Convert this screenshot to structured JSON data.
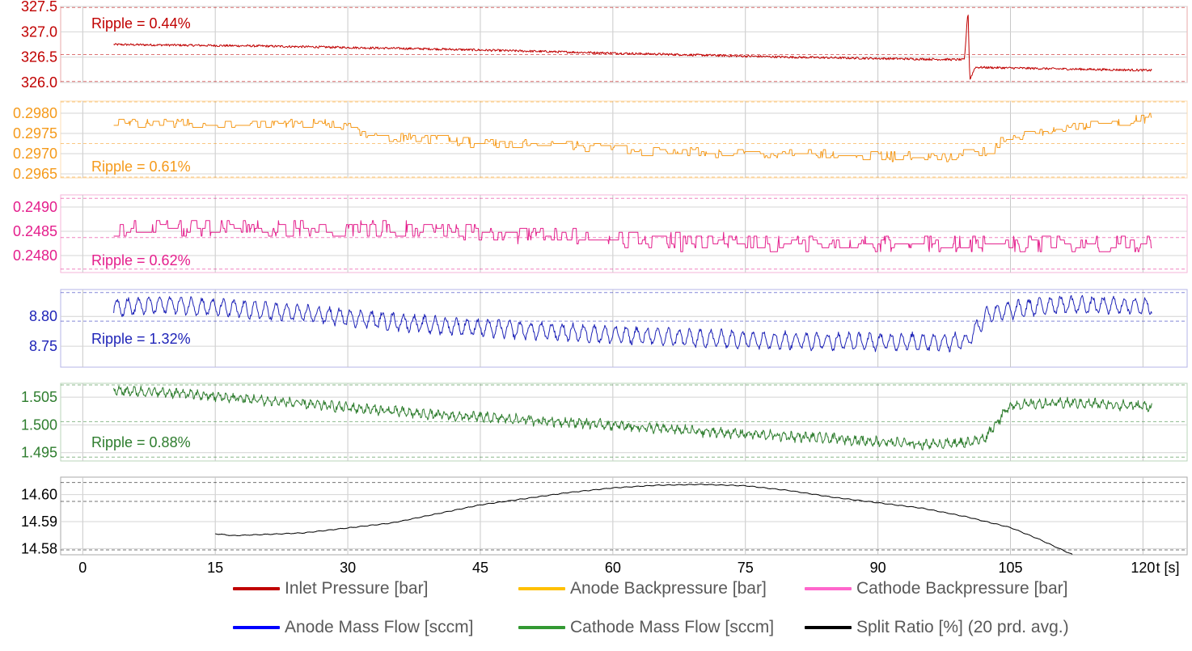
{
  "chart_data": {
    "type": "line",
    "x_axis": {
      "ticks": [
        0,
        15,
        30,
        45,
        60,
        75,
        90,
        105,
        120
      ],
      "tick_labels": [
        "0",
        "15",
        "30",
        "45",
        "60",
        "75",
        "90",
        "105",
        "120"
      ],
      "label": "t [s]",
      "range": [
        -2.5,
        125
      ],
      "grid": true
    },
    "data_range_x": [
      3.5,
      121
    ],
    "panels": [
      {
        "id": "inlet",
        "series_name": "Inlet Pressure [bar]",
        "color": "#c00000",
        "ripple": "Ripple = 0.44%",
        "ylim": [
          326.0,
          327.5
        ],
        "yticks": [
          326.0,
          326.5,
          327.0,
          327.5
        ],
        "ytick_labels": [
          "326.0",
          "326.5",
          "327.0",
          "327.5"
        ],
        "ref_lines": [
          326.02,
          326.55,
          327.48
        ],
        "x": [
          3.5,
          20,
          40,
          60,
          80,
          99.8,
          100.2,
          100.4,
          101,
          110,
          121
        ],
        "y": [
          326.75,
          326.72,
          326.66,
          326.58,
          326.5,
          326.45,
          327.45,
          326.05,
          326.3,
          326.27,
          326.24
        ],
        "noise": 0.022
      },
      {
        "id": "anode_bp",
        "series_name": "Anode Backpressure [bar]",
        "color": "#f59a1b",
        "ripple": "Ripple = 0.61%",
        "ylim": [
          0.2964,
          0.2983
        ],
        "yticks": [
          0.2965,
          0.297,
          0.2975,
          0.298
        ],
        "ytick_labels": [
          "0.2965",
          "0.2970",
          "0.2975",
          "0.2980"
        ],
        "ref_lines": [
          0.29642,
          0.29725,
          0.29828
        ],
        "x": [
          3.5,
          28,
          33,
          40,
          45,
          55,
          63,
          75,
          90,
          98,
          102,
          105,
          110,
          118,
          121
        ],
        "y": [
          0.29775,
          0.29775,
          0.29745,
          0.29735,
          0.29725,
          0.2972,
          0.29705,
          0.297,
          0.29695,
          0.2969,
          0.29705,
          0.2974,
          0.2976,
          0.2978,
          0.2979
        ],
        "noise": 0.00012
      },
      {
        "id": "cathode_bp",
        "series_name": "Cathode Backpressure [bar]",
        "color": "#e41e8c",
        "ripple": "Ripple = 0.62%",
        "ylim": [
          0.24765,
          0.24925
        ],
        "yticks": [
          0.248,
          0.2485,
          0.249
        ],
        "ytick_labels": [
          "0.2480",
          "0.2485",
          "0.2490"
        ],
        "ref_lines": [
          0.24772,
          0.24837,
          0.24918
        ],
        "x": [
          3.5,
          20,
          40,
          45,
          60,
          75,
          90,
          105,
          121
        ],
        "y": [
          0.24855,
          0.24856,
          0.24852,
          0.24848,
          0.24835,
          0.24825,
          0.24822,
          0.24824,
          0.24826
        ],
        "noise": 0.00018
      },
      {
        "id": "anode_mf",
        "series_name": "Anode Mass Flow [sccm]",
        "color": "#1f24b8",
        "ripple": "Ripple = 1.32%",
        "ylim": [
          8.715,
          8.845
        ],
        "yticks": [
          8.75,
          8.8
        ],
        "ytick_labels": [
          "8.75",
          "8.80"
        ],
        "ref_lines": [
          8.792,
          8.84
        ],
        "x": [
          3.5,
          10,
          25,
          40,
          55,
          70,
          85,
          97,
          100,
          102.5,
          110,
          121
        ],
        "y": [
          8.815,
          8.82,
          8.805,
          8.785,
          8.773,
          8.763,
          8.758,
          8.757,
          8.758,
          8.805,
          8.82,
          8.817
        ],
        "amp": 0.013,
        "period": 1.2,
        "noise": 0.004
      },
      {
        "id": "cathode_mf",
        "series_name": "Cathode Mass Flow [sccm]",
        "color": "#2e7d2e",
        "ripple": "Ripple = 0.88%",
        "ylim": [
          1.4935,
          1.5075
        ],
        "yticks": [
          1.495,
          1.5,
          1.505
        ],
        "ytick_labels": [
          "1.495",
          "1.500",
          "1.505"
        ],
        "ref_lines": [
          1.4942,
          1.5006,
          1.5072
        ],
        "x": [
          3.5,
          10,
          25,
          40,
          55,
          70,
          85,
          95,
          100,
          102,
          105,
          112,
          121
        ],
        "y": [
          1.5062,
          1.5058,
          1.5038,
          1.5018,
          1.5005,
          1.4988,
          1.4975,
          1.4965,
          1.4968,
          1.4975,
          1.5036,
          1.504,
          1.5033
        ],
        "amp": 0.00055,
        "period": 0.8,
        "noise": 0.00055
      },
      {
        "id": "split",
        "series_name": "Split Ratio [%] (20 prd. avg.)",
        "color": "#000000",
        "ripple": "",
        "ylim": [
          14.5777,
          14.6065
        ],
        "yticks": [
          14.58,
          14.59,
          14.6
        ],
        "ytick_labels": [
          "14.58",
          "14.59",
          "14.60"
        ],
        "ref_lines": [
          14.5795,
          14.5975,
          14.6045
        ],
        "x": [
          15,
          17,
          25,
          35,
          45,
          55,
          60,
          65,
          70,
          75,
          80,
          85,
          95,
          100,
          105,
          108,
          112
        ],
        "y": [
          14.5855,
          14.5848,
          14.5858,
          14.5895,
          14.5962,
          14.6008,
          14.6025,
          14.6035,
          14.6038,
          14.6033,
          14.6015,
          14.599,
          14.595,
          14.5918,
          14.5878,
          14.5838,
          14.5778
        ],
        "amp": 0.00012,
        "period": 1.2,
        "noise": 5e-05
      }
    ],
    "legend": {
      "placement": "bottom",
      "entries": [
        {
          "label": "Inlet Pressure [bar]",
          "color": "#c00000"
        },
        {
          "label": "Anode Backpressure [bar]",
          "color": "#ffc000"
        },
        {
          "label": "Cathode Backpressure [bar]",
          "color": "#ff66cc"
        },
        {
          "label": "Anode Mass Flow [sccm]",
          "color": "#0000ff"
        },
        {
          "label": "Cathode Mass Flow [sccm]",
          "color": "#339933"
        },
        {
          "label": "Split Ratio [%] (20 prd. avg.)",
          "color": "#000000"
        }
      ]
    }
  }
}
